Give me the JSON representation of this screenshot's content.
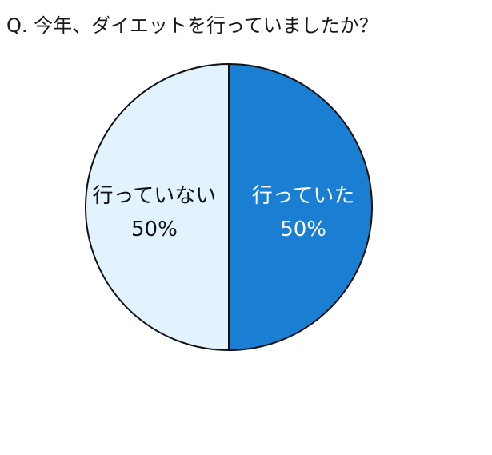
{
  "chart_data": {
    "type": "pie",
    "title": "Q. 今年、ダイエットを行っていましたか？",
    "slices": [
      {
        "label": "行っていた",
        "value": 50,
        "value_label": "50%",
        "color": "#1a7fd2",
        "text_color": "#ffffff"
      },
      {
        "label": "行っていない",
        "value": 50,
        "value_label": "50%",
        "color": "#e3f3fd",
        "text_color": "#111111"
      }
    ],
    "start_angle": "12 o'clock",
    "direction": "clockwise",
    "legend": "none",
    "outline_color": "#111111"
  }
}
